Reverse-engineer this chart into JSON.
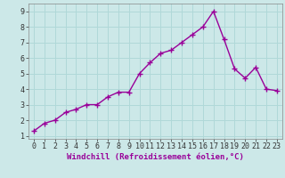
{
  "x": [
    0,
    1,
    2,
    3,
    4,
    5,
    6,
    7,
    8,
    9,
    10,
    11,
    12,
    13,
    14,
    15,
    16,
    17,
    18,
    19,
    20,
    21,
    22,
    23
  ],
  "y": [
    1.3,
    1.8,
    2.0,
    2.5,
    2.7,
    3.0,
    3.0,
    3.5,
    3.8,
    3.8,
    5.0,
    5.7,
    6.3,
    6.5,
    7.0,
    7.5,
    8.0,
    9.0,
    7.2,
    5.3,
    4.7,
    5.4,
    4.0,
    3.9
  ],
  "line_color": "#990099",
  "marker": "+",
  "marker_size": 4,
  "marker_lw": 1.0,
  "xlabel": "Windchill (Refroidissement éolien,°C)",
  "xlabel_fontsize": 6.5,
  "ylabel_ticks": [
    1,
    2,
    3,
    4,
    5,
    6,
    7,
    8,
    9
  ],
  "xlim": [
    -0.5,
    23.5
  ],
  "ylim": [
    0.8,
    9.5
  ],
  "bg_color": "#cce8e8",
  "grid_color": "#b0d8d8",
  "tick_label_fontsize": 6.0,
  "line_width": 1.0,
  "tick_color": "#666666"
}
